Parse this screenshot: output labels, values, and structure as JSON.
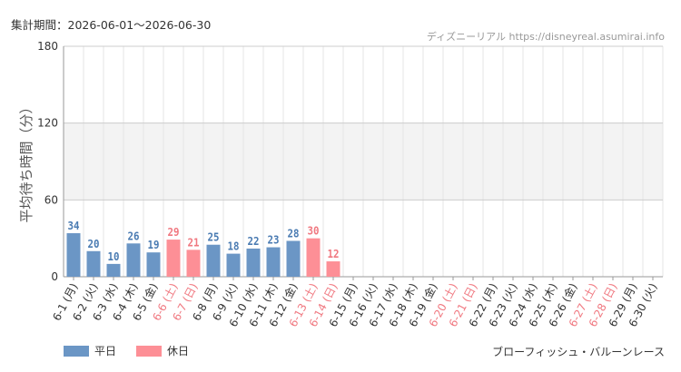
{
  "header": {
    "period": "集計期間：2026-06-01～2026-06-30",
    "source": "ディズニーリアル https://disneyreal.asumirai.info"
  },
  "footer": {
    "attraction": "ブローフィッシュ・バルーンレース"
  },
  "colors": {
    "weekday": "#6b96c5",
    "holiday": "#fd8f96",
    "weekday_text": "#4a7bb2",
    "holiday_text": "#f07880",
    "band": "#f3f3f3",
    "grid": "#e6e6e6"
  },
  "chart_data": {
    "type": "bar",
    "ylabel": "平均待ち時間（分）",
    "ylim": [
      0,
      180
    ],
    "yticks": [
      0,
      60,
      120,
      180
    ],
    "shaded_band": [
      60,
      120
    ],
    "categories": [
      "6-1 (月)",
      "6-2 (火)",
      "6-3 (水)",
      "6-4 (木)",
      "6-5 (金)",
      "6-6 (土)",
      "6-7 (日)",
      "6-8 (月)",
      "6-9 (火)",
      "6-10 (水)",
      "6-11 (木)",
      "6-12 (金)",
      "6-13 (土)",
      "6-14 (日)",
      "6-15 (月)",
      "6-16 (火)",
      "6-17 (水)",
      "6-18 (木)",
      "6-19 (金)",
      "6-20 (土)",
      "6-21 (日)",
      "6-22 (月)",
      "6-23 (火)",
      "6-24 (水)",
      "6-25 (木)",
      "6-26 (金)",
      "6-27 (土)",
      "6-28 (日)",
      "6-29 (月)",
      "6-30 (火)"
    ],
    "holiday": [
      false,
      false,
      false,
      false,
      false,
      true,
      true,
      false,
      false,
      false,
      false,
      false,
      true,
      true,
      false,
      false,
      false,
      false,
      false,
      true,
      true,
      false,
      false,
      false,
      false,
      false,
      true,
      true,
      false,
      false
    ],
    "values": [
      34,
      20,
      10,
      26,
      19,
      29,
      21,
      25,
      18,
      22,
      23,
      28,
      30,
      12,
      null,
      null,
      null,
      null,
      null,
      null,
      null,
      null,
      null,
      null,
      null,
      null,
      null,
      null,
      null,
      null
    ],
    "legend": [
      {
        "name": "平日",
        "color": "#6b96c5"
      },
      {
        "name": "休日",
        "color": "#fd8f96"
      }
    ]
  }
}
